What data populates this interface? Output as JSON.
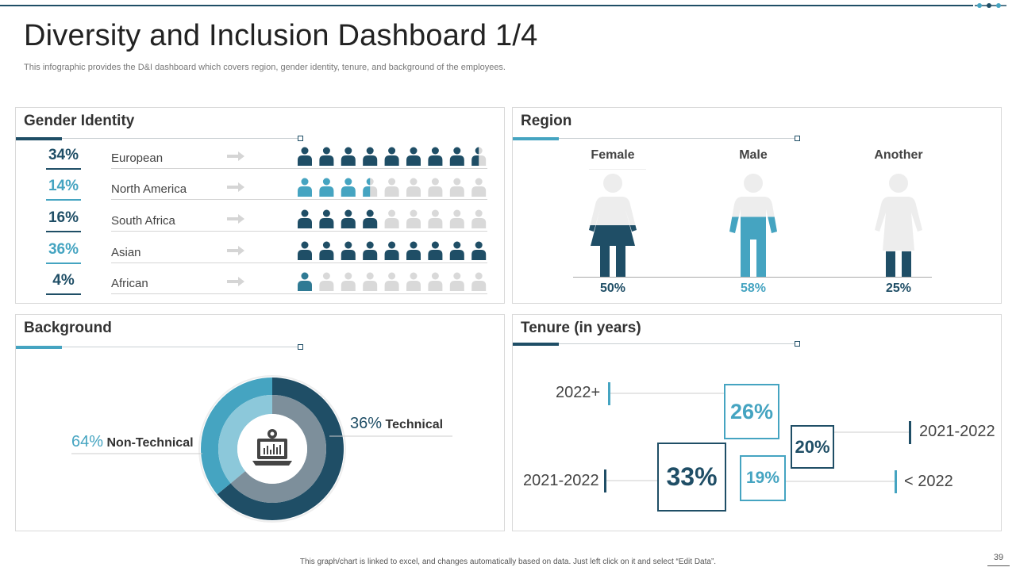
{
  "header": {
    "title": "Diversity and Inclusion Dashboard 1/4",
    "subtitle": "This infographic provides the D&I dashboard which covers region, gender identity, tenure, and background of the employees."
  },
  "colors": {
    "dark": "#1f4e66",
    "teal": "#45a4c1",
    "light_teal": "#8cc8da",
    "gray": "#7d8f9b",
    "placeholder": "#d9d9d9"
  },
  "gender_identity": {
    "title": "Gender Identity",
    "rows": [
      {
        "percent": "34%",
        "label": "European",
        "filled": 8.5,
        "color": "#1f4e66"
      },
      {
        "percent": "14%",
        "label": "North America",
        "filled": 3.5,
        "color": "#45a4c1"
      },
      {
        "percent": "16%",
        "label": "South Africa",
        "filled": 4,
        "color": "#1f4e66"
      },
      {
        "percent": "36%",
        "label": "Asian",
        "filled": 9,
        "color": "#1f4e66"
      },
      {
        "percent": "4%",
        "label": "African",
        "filled": 1,
        "color": "#2f7a94"
      }
    ]
  },
  "region": {
    "title": "Region",
    "figures": [
      {
        "label": "Female",
        "percent": "50%",
        "value": 50,
        "color": "#1f4e66"
      },
      {
        "label": "Male",
        "percent": "58%",
        "value": 58,
        "color": "#45a4c1"
      },
      {
        "label": "Another",
        "percent": "25%",
        "value": 25,
        "color": "#1f4e66"
      }
    ]
  },
  "background": {
    "title": "Background",
    "segments": [
      {
        "percent": "36%",
        "label": "Technical",
        "value": 36
      },
      {
        "percent": "64%",
        "label": "Non-Technical",
        "value": 64
      }
    ],
    "center_icon": "laptop-gear-icon"
  },
  "tenure": {
    "title": "Tenure (in years)",
    "items": [
      {
        "period": "2022+",
        "percent": "26%",
        "value": 26
      },
      {
        "period": "2021-2022",
        "percent": "20%",
        "value": 20
      },
      {
        "period": "2021-2022",
        "percent": "33%",
        "value": 33
      },
      {
        "period": "< 2022",
        "percent": "19%",
        "value": 19
      }
    ]
  },
  "footer": {
    "note": "This graph/chart is linked to excel, and changes automatically based on data. Just left click on it and select “Edit Data”.",
    "page_number": "39"
  }
}
